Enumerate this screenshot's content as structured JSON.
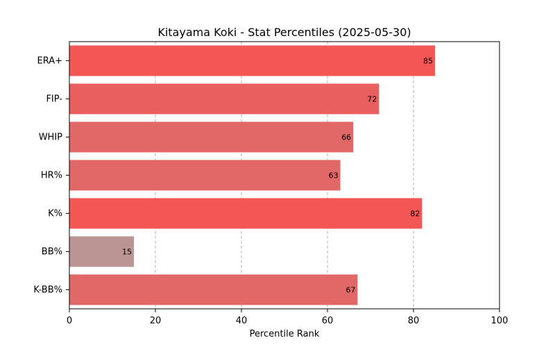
{
  "chart_data": {
    "type": "bar",
    "orientation": "horizontal",
    "title": "Kitayama Koki - Stat Percentiles (2025-05-30)",
    "xlabel": "Percentile Rank",
    "ylabel": "",
    "xlim": [
      0,
      100
    ],
    "xticks": [
      0,
      20,
      40,
      60,
      80,
      100
    ],
    "grid": "vertical dashed",
    "categories": [
      "ERA+",
      "FIP-",
      "WHIP",
      "HR%",
      "K%",
      "BB%",
      "K-BB%"
    ],
    "values": [
      85,
      72,
      66,
      63,
      82,
      15,
      67
    ],
    "colors": [
      "#f45555",
      "#e95f5f",
      "#e26767",
      "#e26767",
      "#f45555",
      "#bb9494",
      "#e26767"
    ]
  }
}
